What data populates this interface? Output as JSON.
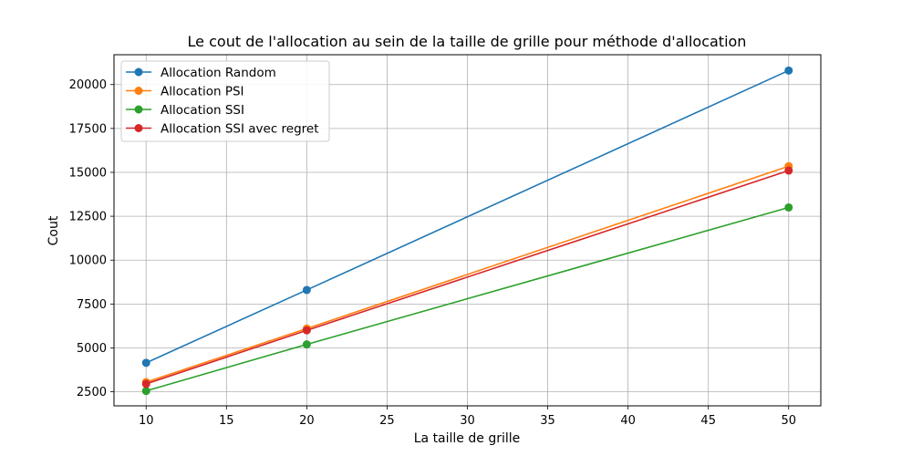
{
  "chart_data": {
    "type": "line",
    "title": "Le cout de l'allocation au sein de la taille de grille pour méthode d'allocation",
    "xlabel": "La taille de grille",
    "ylabel": "Cout",
    "x": [
      10,
      20,
      50
    ],
    "xlim": [
      8,
      52
    ],
    "ylim": [
      1700,
      21700
    ],
    "xticks": [
      10,
      15,
      20,
      25,
      30,
      35,
      40,
      45,
      50
    ],
    "yticks": [
      2500,
      5000,
      7500,
      10000,
      12500,
      15000,
      17500,
      20000
    ],
    "grid": true,
    "legend_position": "top-left",
    "series": [
      {
        "name": "Allocation Random",
        "color": "#1f77b4",
        "values": [
          4150,
          8300,
          20800
        ]
      },
      {
        "name": "Allocation PSI",
        "color": "#ff7f0e",
        "values": [
          3050,
          6100,
          15350
        ]
      },
      {
        "name": "Allocation SSI",
        "color": "#2ca02c",
        "values": [
          2550,
          5200,
          13000
        ]
      },
      {
        "name": "Allocation SSI avec regret",
        "color": "#d62728",
        "values": [
          2950,
          6000,
          15100
        ]
      }
    ]
  }
}
